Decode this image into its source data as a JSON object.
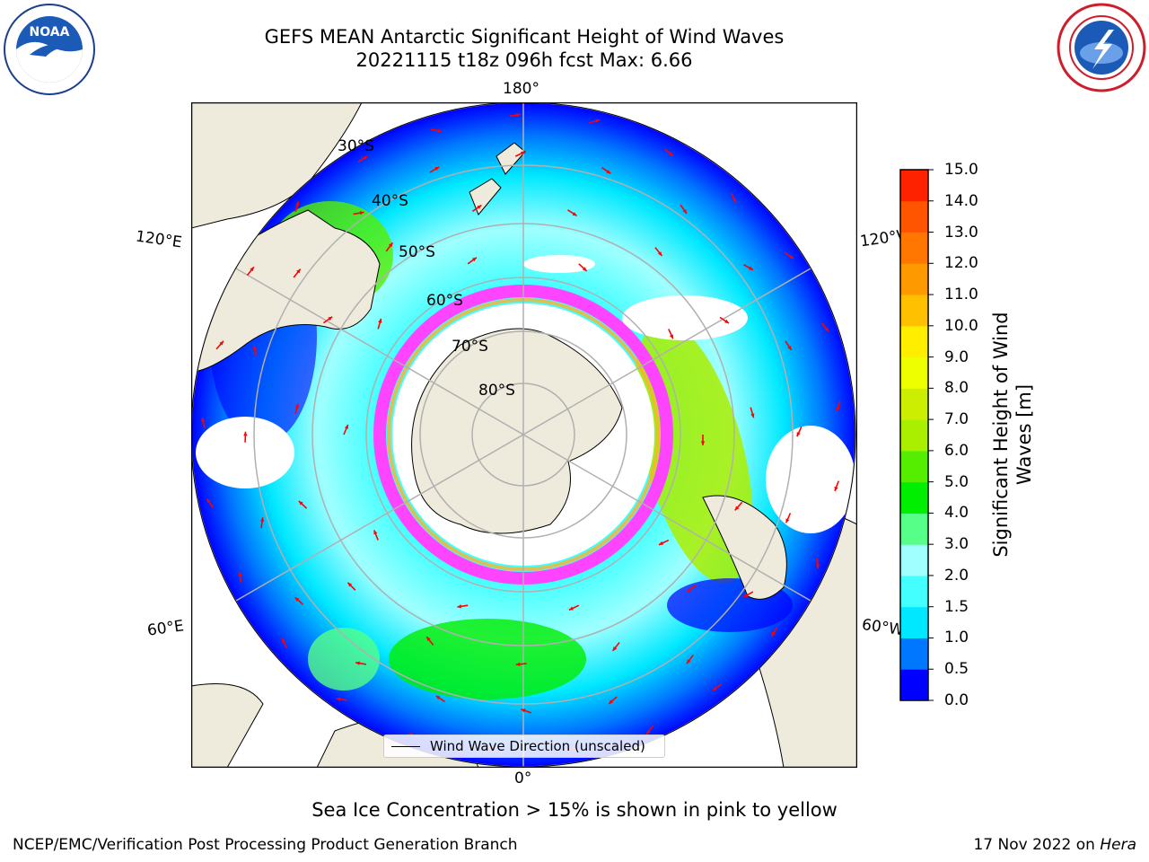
{
  "header": {
    "title_line1": "GEFS MEAN Antarctic Significant Height of Wind Waves",
    "title_line2": "20221115 t18z 096h fcst   Max: 6.66"
  },
  "logos": {
    "left_text": "NOAA",
    "left_ring": "NATIONAL OCEANIC AND ATMOSPHERIC ADMINISTRATION · U.S. DEPARTMENT OF COMMERCE",
    "right_ring": "NATIONAL WEATHER SERVICE"
  },
  "map": {
    "longitude_labels": {
      "top": "180°",
      "bottom": "0°",
      "upper_left": "120°E",
      "upper_right": "120°W",
      "lower_left": "60°E",
      "lower_right": "60°W"
    },
    "latitude_labels": [
      "30°S",
      "40°S",
      "50°S",
      "60°S",
      "70°S",
      "80°S"
    ],
    "legend_label": "Wind Wave Direction (unscaled)",
    "colors": {
      "land": "#efebdc",
      "ice_edge": "#ff44ff",
      "ice_inner": "#ffb030",
      "grid": "#b0b0b0",
      "arrow": "#ff0000",
      "ocean_low": "#0000ff"
    }
  },
  "colorbar": {
    "label": "Significant Height of Wind Waves [m]",
    "ticks": [
      "0.0",
      "0.5",
      "1.0",
      "1.5",
      "2.0",
      "3.0",
      "4.0",
      "5.0",
      "6.0",
      "7.0",
      "8.0",
      "9.0",
      "10.0",
      "11.0",
      "12.0",
      "13.0",
      "14.0",
      "15.0"
    ],
    "colors": [
      "#0000ff",
      "#0077ff",
      "#00e8ff",
      "#44ffff",
      "#a0ffff",
      "#55ff88",
      "#00ee00",
      "#55ee00",
      "#aaee00",
      "#ccee00",
      "#eeff00",
      "#ffee00",
      "#ffc000",
      "#ff9900",
      "#ff7700",
      "#ff5500",
      "#ff2200"
    ]
  },
  "footer": {
    "caption": "Sea Ice Concentration > 15% is shown in pink to yellow",
    "left": "NCEP/EMC/Verification Post Processing Product Generation Branch",
    "right_prefix": "17 Nov 2022 on ",
    "right_host": "Hera"
  }
}
